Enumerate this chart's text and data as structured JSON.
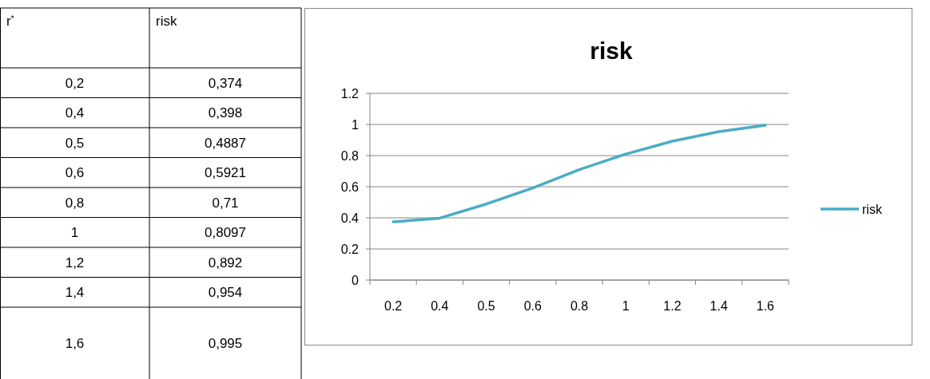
{
  "chart_data": {
    "type": "line",
    "title": "risk",
    "categories": [
      "0.2",
      "0.4",
      "0.5",
      "0.6",
      "0.8",
      "1",
      "1.2",
      "1.4",
      "1.6"
    ],
    "series": [
      {
        "name": "risk",
        "color": "#4bacc6",
        "values": [
          0.374,
          0.398,
          0.4887,
          0.5921,
          0.71,
          0.8097,
          0.892,
          0.954,
          0.995
        ]
      }
    ],
    "annotations": [
      "r$^{*}$",
      "risk",
      "0,2",
      "0,374",
      "0,4",
      "0,398",
      "0,5",
      "0,4887",
      "0,6",
      "0,5921",
      "0,8",
      "0,71",
      "1",
      "0,8097",
      "1,2",
      "0,892",
      "1,4",
      "0,954",
      "1,6",
      "0,995"
    ],
    "ylim": [
      0,
      1.2
    ],
    "yticks": [
      0,
      0.2,
      0.4,
      0.6,
      0.8,
      1,
      1.2
    ],
    "grid": "y",
    "legend": "right",
    "marker": "none",
    "line_style": "solid"
  }
}
